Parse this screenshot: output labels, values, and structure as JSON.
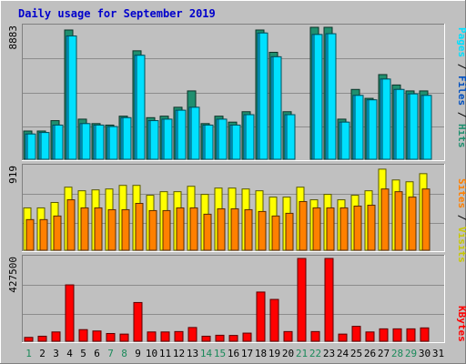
{
  "title": "Daily usage for September 2019",
  "colors": {
    "background": "#c0c0c0",
    "plot_bg": "#c0c0c0",
    "grid": "#8c8c8c",
    "title": "#0000cc",
    "hits": "#1f8f6f",
    "files": "#00c0ff",
    "pages": "#00e0ff",
    "visits": "#ffff00",
    "sites": "#ff8000",
    "kbytes": "#ff0000",
    "weekend_label": "#1a8a5a",
    "weekday_label": "#0000cc"
  },
  "chart_data": [
    {
      "type": "bar",
      "panel": "hits-files-pages",
      "categories": [
        "1",
        "2",
        "3",
        "4",
        "5",
        "6",
        "7",
        "8",
        "9",
        "10",
        "11",
        "12",
        "13",
        "14",
        "15",
        "16",
        "17",
        "18",
        "19",
        "20",
        "21",
        "22",
        "23",
        "24",
        "25",
        "26",
        "27",
        "28",
        "29",
        "30",
        "31"
      ],
      "y_max_label": "8883",
      "ylim": [
        0,
        8883
      ],
      "grid": true,
      "legend_labels": [
        "Pages",
        "Files",
        "Hits"
      ],
      "series": [
        {
          "name": "Hits",
          "values": [
            1900,
            1900,
            2600,
            8700,
            2700,
            2400,
            2300,
            2900,
            7300,
            2800,
            2900,
            3500,
            4600,
            2400,
            2900,
            2500,
            3200,
            8700,
            7200,
            3200,
            0,
            8883,
            8883,
            2700,
            4700,
            4100,
            5700,
            5000,
            4600,
            4600,
            0
          ]
        },
        {
          "name": "Files",
          "values": [
            1700,
            1800,
            2300,
            8300,
            2400,
            2300,
            2200,
            2800,
            7000,
            2600,
            2700,
            3300,
            3500,
            2300,
            2700,
            2300,
            3000,
            8500,
            6900,
            3000,
            0,
            8400,
            8450,
            2500,
            4300,
            4000,
            5400,
            4700,
            4400,
            4300,
            0
          ]
        },
        {
          "name": "Pages",
          "values": [
            1700,
            1800,
            2300,
            8300,
            2400,
            2300,
            2200,
            2800,
            7000,
            2600,
            2700,
            3300,
            3500,
            2300,
            2700,
            2300,
            3000,
            8500,
            6900,
            3000,
            0,
            8400,
            8450,
            2500,
            4300,
            4000,
            5400,
            4700,
            4400,
            4300,
            0
          ]
        }
      ]
    },
    {
      "type": "bar",
      "panel": "visits-sites",
      "categories": [
        "1",
        "2",
        "3",
        "4",
        "5",
        "6",
        "7",
        "8",
        "9",
        "10",
        "11",
        "12",
        "13",
        "14",
        "15",
        "16",
        "17",
        "18",
        "19",
        "20",
        "21",
        "22",
        "23",
        "24",
        "25",
        "26",
        "27",
        "28",
        "29",
        "30",
        "31"
      ],
      "y_max_label": "919",
      "ylim": [
        0,
        919
      ],
      "grid": true,
      "legend_labels": [
        "Sites",
        "Visits"
      ],
      "series": [
        {
          "name": "Visits",
          "values": [
            470,
            470,
            530,
            700,
            660,
            670,
            680,
            720,
            720,
            610,
            650,
            650,
            710,
            620,
            690,
            690,
            680,
            660,
            590,
            590,
            700,
            560,
            620,
            560,
            610,
            660,
            900,
            780,
            760,
            850,
            0
          ]
        },
        {
          "name": "Sites",
          "values": [
            340,
            340,
            380,
            560,
            470,
            470,
            450,
            450,
            520,
            440,
            440,
            470,
            470,
            400,
            460,
            460,
            450,
            430,
            380,
            410,
            540,
            470,
            470,
            470,
            490,
            500,
            680,
            650,
            590,
            680,
            0
          ]
        }
      ]
    },
    {
      "type": "bar",
      "panel": "kbytes",
      "categories": [
        "1",
        "2",
        "3",
        "4",
        "5",
        "6",
        "7",
        "8",
        "9",
        "10",
        "11",
        "12",
        "13",
        "14",
        "15",
        "16",
        "17",
        "18",
        "19",
        "20",
        "21",
        "22",
        "23",
        "24",
        "25",
        "26",
        "27",
        "28",
        "29",
        "30",
        "31"
      ],
      "y_max_label": "427500",
      "ylim": [
        0,
        427500
      ],
      "grid": true,
      "legend_labels": [
        "KBytes"
      ],
      "series": [
        {
          "name": "KBytes",
          "values": [
            20000,
            26000,
            48000,
            291000,
            60000,
            53000,
            40000,
            37000,
            200000,
            48000,
            48000,
            50000,
            71000,
            26000,
            31000,
            30000,
            42000,
            254000,
            216000,
            50000,
            427500,
            50000,
            427500,
            37000,
            77000,
            48000,
            64000,
            64000,
            64000,
            69000,
            0
          ]
        }
      ]
    }
  ],
  "x_labels": [
    "1",
    "2",
    "3",
    "4",
    "5",
    "6",
    "7",
    "8",
    "9",
    "10",
    "11",
    "12",
    "13",
    "14",
    "15",
    "16",
    "17",
    "18",
    "19",
    "20",
    "21",
    "22",
    "23",
    "24",
    "25",
    "26",
    "27",
    "28",
    "29",
    "30",
    "31"
  ],
  "weekend_days": [
    1,
    7,
    8,
    14,
    15,
    21,
    22,
    28,
    29
  ]
}
